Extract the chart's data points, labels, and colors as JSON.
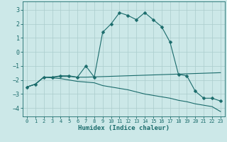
{
  "xlabel": "Humidex (Indice chaleur)",
  "bg_color": "#cce8e8",
  "grid_color": "#aacccc",
  "line_color": "#1a6b6b",
  "xlim": [
    -0.5,
    23.5
  ],
  "ylim": [
    -4.6,
    3.6
  ],
  "yticks": [
    3,
    2,
    1,
    0,
    -1,
    -2,
    -3,
    -4
  ],
  "xticks": [
    0,
    1,
    2,
    3,
    4,
    5,
    6,
    7,
    8,
    9,
    10,
    11,
    12,
    13,
    14,
    15,
    16,
    17,
    18,
    19,
    20,
    21,
    22,
    23
  ],
  "series": [
    {
      "x": [
        0,
        1,
        2,
        3,
        4,
        5,
        6,
        7,
        8,
        9,
        10,
        11,
        12,
        13,
        14,
        15,
        16,
        17,
        18,
        19,
        20,
        21,
        22,
        23
      ],
      "y": [
        -2.5,
        -2.3,
        -1.8,
        -1.8,
        -1.7,
        -1.7,
        -1.8,
        -1.0,
        -1.8,
        1.4,
        2.0,
        2.8,
        2.6,
        2.3,
        2.8,
        2.3,
        1.8,
        0.7,
        -1.6,
        -1.7,
        -2.8,
        -3.3,
        -3.3,
        -3.5
      ],
      "marker": "D",
      "markersize": 2.5
    },
    {
      "x": [
        0,
        1,
        2,
        3,
        4,
        5,
        6,
        7,
        8,
        9,
        10,
        11,
        12,
        13,
        14,
        15,
        16,
        17,
        18,
        19,
        20,
        21,
        22,
        23
      ],
      "y": [
        -2.5,
        -2.3,
        -1.8,
        -1.8,
        -1.75,
        -1.75,
        -1.8,
        -1.8,
        -1.78,
        -1.76,
        -1.74,
        -1.72,
        -1.7,
        -1.68,
        -1.66,
        -1.64,
        -1.62,
        -1.6,
        -1.58,
        -1.56,
        -1.54,
        -1.52,
        -1.5,
        -1.48
      ],
      "marker": null,
      "markersize": 0
    },
    {
      "x": [
        0,
        1,
        2,
        3,
        4,
        5,
        6,
        7,
        8,
        9,
        10,
        11,
        12,
        13,
        14,
        15,
        16,
        17,
        18,
        19,
        20,
        21,
        22,
        23
      ],
      "y": [
        -2.5,
        -2.3,
        -1.8,
        -1.85,
        -1.9,
        -2.0,
        -2.1,
        -2.15,
        -2.2,
        -2.4,
        -2.5,
        -2.6,
        -2.7,
        -2.85,
        -3.0,
        -3.1,
        -3.2,
        -3.3,
        -3.45,
        -3.55,
        -3.7,
        -3.8,
        -3.9,
        -4.25
      ],
      "marker": null,
      "markersize": 0
    }
  ]
}
